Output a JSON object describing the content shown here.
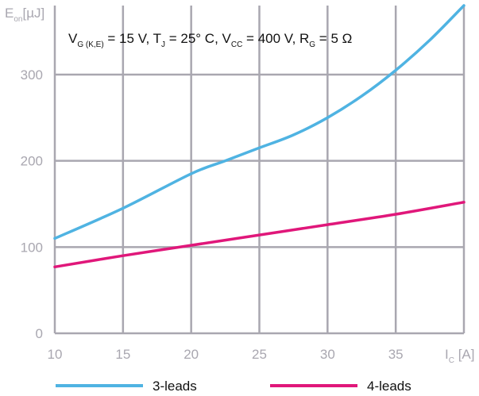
{
  "chart_data": {
    "type": "line",
    "y_label": {
      "main": "E",
      "sub": "on",
      "unit": "[µJ]"
    },
    "x_label": {
      "main": "I",
      "sub": "C",
      "unit": " [A]"
    },
    "xlim": [
      10,
      40
    ],
    "ylim": [
      0,
      380
    ],
    "x_ticks": [
      10,
      15,
      20,
      25,
      30,
      35
    ],
    "y_ticks": [
      0,
      100,
      200,
      300
    ],
    "grid": true,
    "conditions": [
      {
        "main": "V",
        "sub": "G (K,E)",
        "rest": " = 15 V, T"
      },
      {
        "main": "",
        "sub": "J",
        "rest": " = 25° C, V"
      },
      {
        "main": "",
        "sub": "CC",
        "rest": " = 400 V, R"
      },
      {
        "main": "",
        "sub": "G",
        "rest": " = 5 Ω"
      }
    ],
    "legend_position": "bottom",
    "series": [
      {
        "name": "3-leads",
        "color": "#4fb3e2",
        "x": [
          10,
          15,
          20,
          22.5,
          25,
          27.5,
          30,
          32.5,
          35,
          37.5,
          40
        ],
        "y": [
          110,
          145,
          185,
          200,
          215,
          230,
          250,
          275,
          305,
          340,
          380
        ]
      },
      {
        "name": "4-leads",
        "color": "#e0177a",
        "x": [
          10,
          15,
          20,
          25,
          30,
          35,
          40
        ],
        "y": [
          77,
          90,
          102,
          114,
          126,
          138,
          152
        ]
      }
    ],
    "axis_color": "#a9a7b0",
    "grid_color": "#a9a7b0"
  }
}
